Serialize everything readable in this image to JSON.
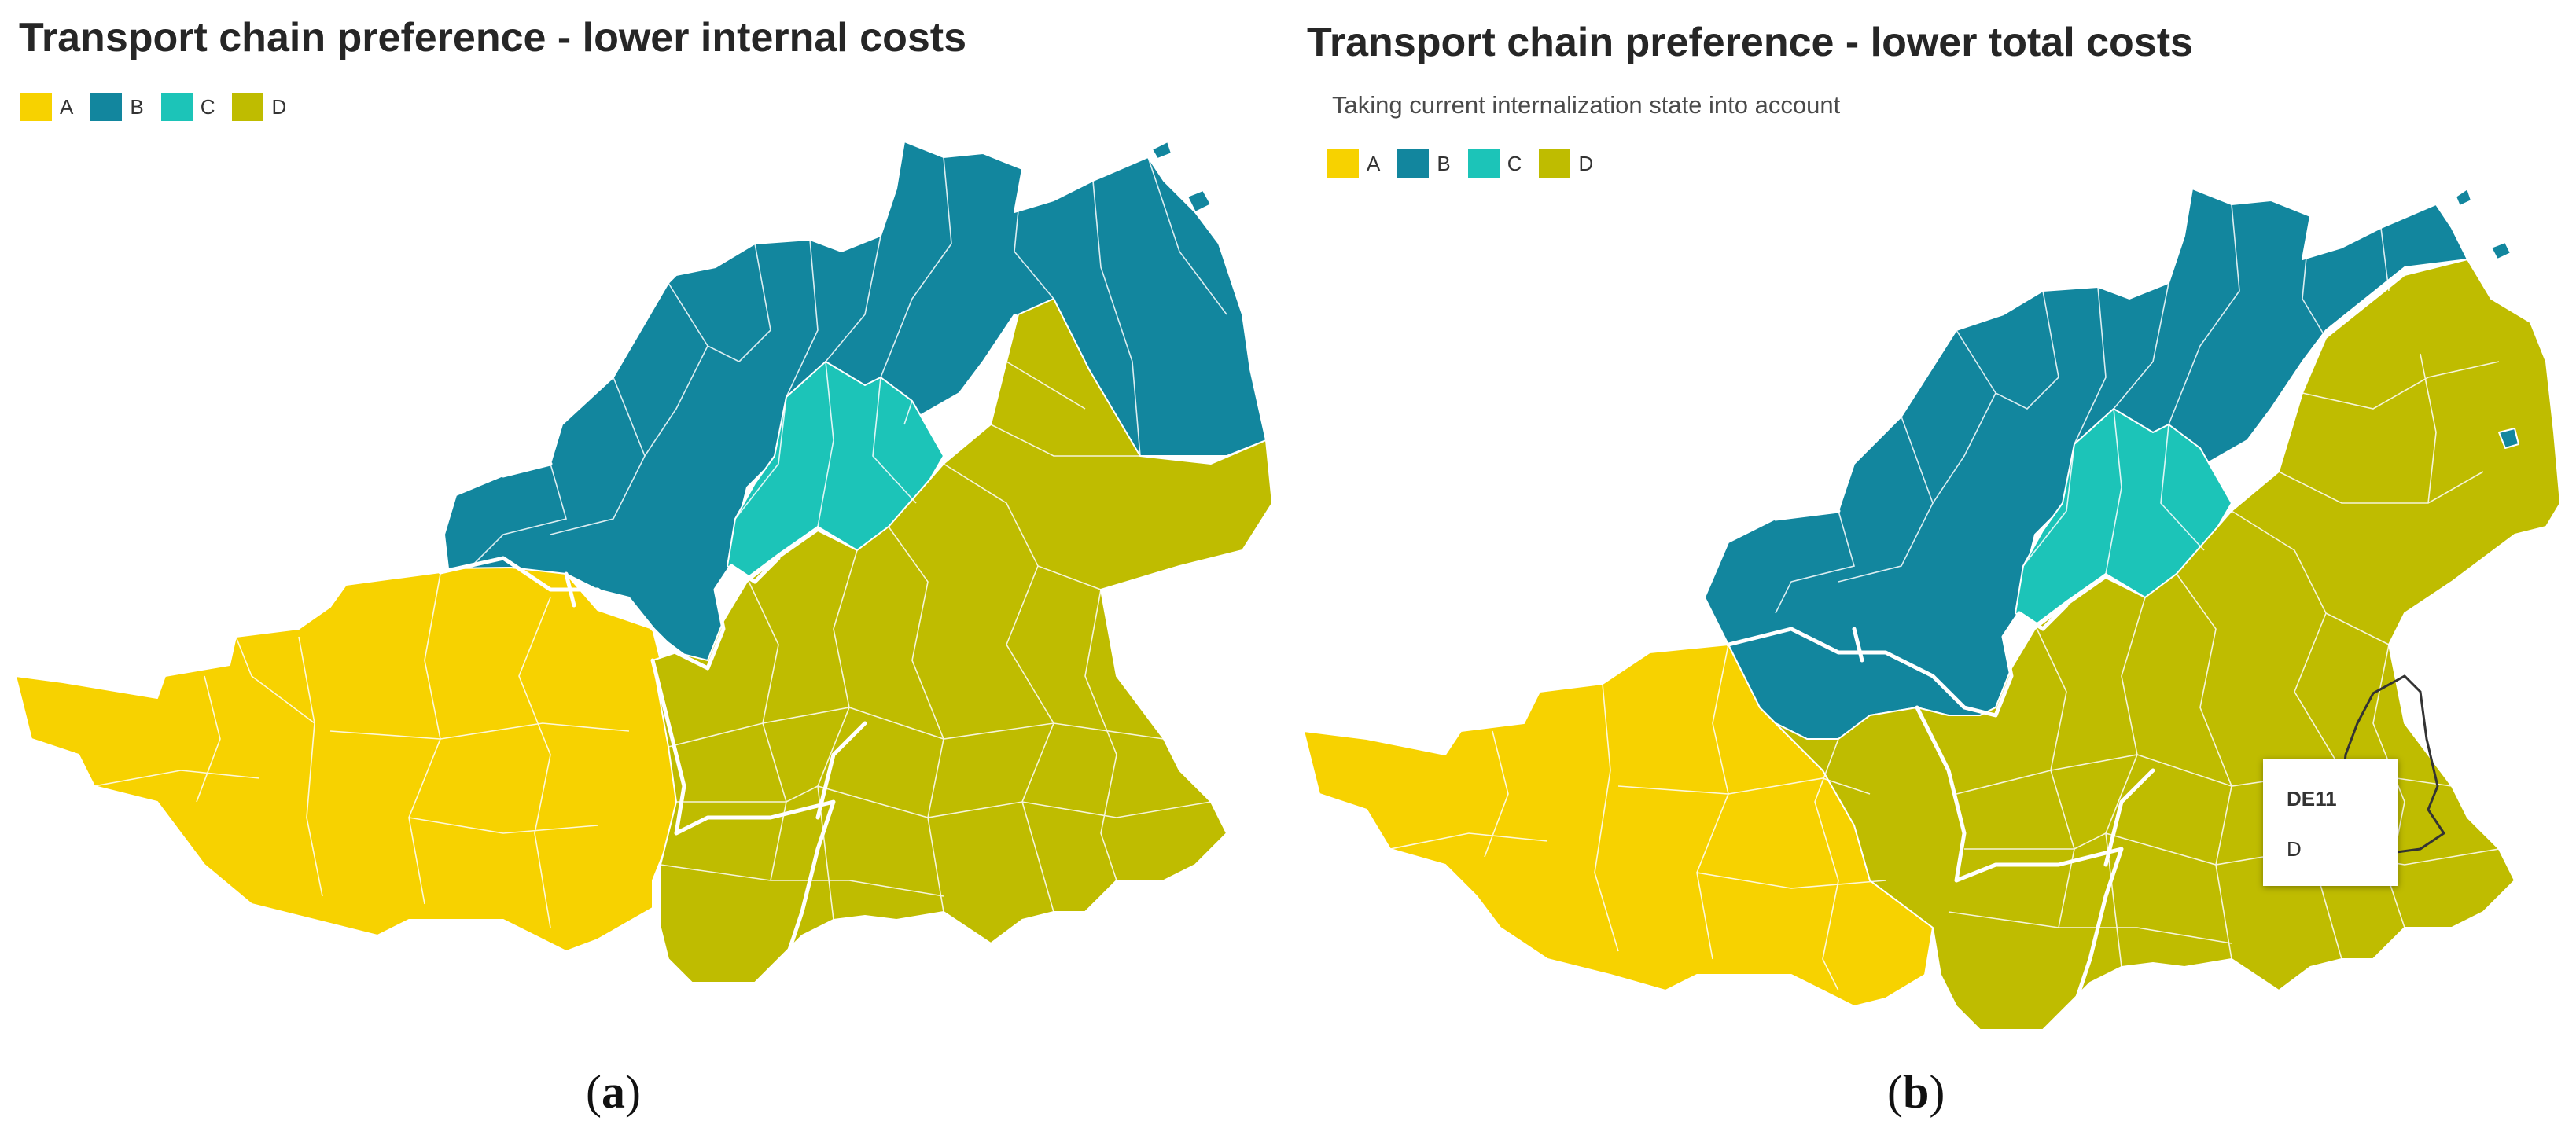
{
  "colors": {
    "A": "#f7d200",
    "B": "#12869e",
    "C": "#1cc4b8",
    "D": "#bfbc00"
  },
  "panels": [
    {
      "title": "Transport chain preference - lower internal costs",
      "legend": [
        "A",
        "B",
        "C",
        "D"
      ],
      "caption_open": "(",
      "caption_letter": "a",
      "caption_close": ")"
    },
    {
      "title": "Transport chain preference - lower total costs",
      "subtitle": "Taking current internalization state into account",
      "legend": [
        "A",
        "B",
        "C",
        "D"
      ],
      "tooltip": {
        "region": "DE11",
        "value": "D"
      },
      "caption_open": "(",
      "caption_letter": "b",
      "caption_close": ")"
    }
  ]
}
